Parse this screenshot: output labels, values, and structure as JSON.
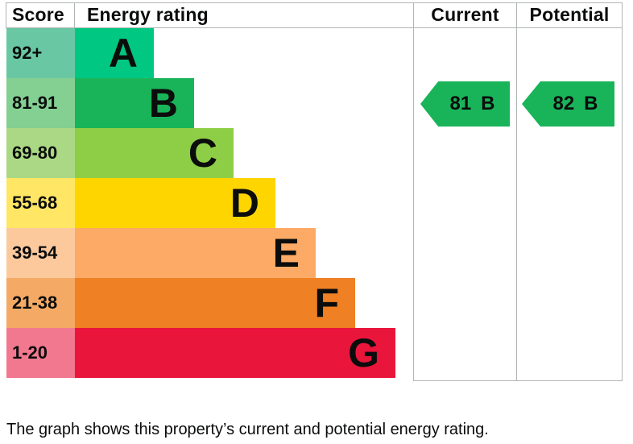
{
  "header": {
    "score": "Score",
    "energy_rating": "Energy rating",
    "current": "Current",
    "potential": "Potential"
  },
  "bands": [
    {
      "score": "92+",
      "letter": "A",
      "bar_color": "#00c781",
      "score_color": "#69c8a3"
    },
    {
      "score": "81-91",
      "letter": "B",
      "bar_color": "#19b459",
      "score_color": "#84cf92"
    },
    {
      "score": "69-80",
      "letter": "C",
      "bar_color": "#8dce46",
      "score_color": "#aad884"
    },
    {
      "score": "55-68",
      "letter": "D",
      "bar_color": "#ffd500",
      "score_color": "#ffe664"
    },
    {
      "score": "39-54",
      "letter": "E",
      "bar_color": "#fcaa65",
      "score_color": "#fcc99d"
    },
    {
      "score": "21-38",
      "letter": "F",
      "bar_color": "#ef8023",
      "score_color": "#f4aa65"
    },
    {
      "score": "1-20",
      "letter": "G",
      "bar_color": "#e9153b",
      "score_color": "#f2788f"
    }
  ],
  "ratings": {
    "current": {
      "value": "81",
      "band": "B",
      "arrow_color": "#19b459"
    },
    "potential": {
      "value": "82",
      "band": "B",
      "arrow_color": "#19b459"
    }
  },
  "caption": "The graph shows this property’s current and potential energy rating.",
  "colors": {
    "border": "#b1b4b6",
    "text": "#0b0c0c",
    "background": "#ffffff"
  },
  "chart_data": {
    "type": "bar",
    "title": "Energy efficiency rating chart",
    "columns": [
      "Score",
      "Energy rating",
      "Current",
      "Potential"
    ],
    "categories": [
      "A",
      "B",
      "C",
      "D",
      "E",
      "F",
      "G"
    ],
    "score_ranges": [
      "92+",
      "81-91",
      "69-80",
      "55-68",
      "39-54",
      "21-38",
      "1-20"
    ],
    "band_colors": [
      "#00c781",
      "#19b459",
      "#8dce46",
      "#ffd500",
      "#fcaa65",
      "#ef8023",
      "#e9153b"
    ],
    "bar_lengths_relative": [
      1,
      1.5,
      2,
      2.5,
      3,
      3.5,
      4
    ],
    "current_rating": {
      "score": 81,
      "band": "B"
    },
    "potential_rating": {
      "score": 82,
      "band": "B"
    },
    "orientation": "horizontal",
    "grid": false,
    "legend_position": "none"
  }
}
